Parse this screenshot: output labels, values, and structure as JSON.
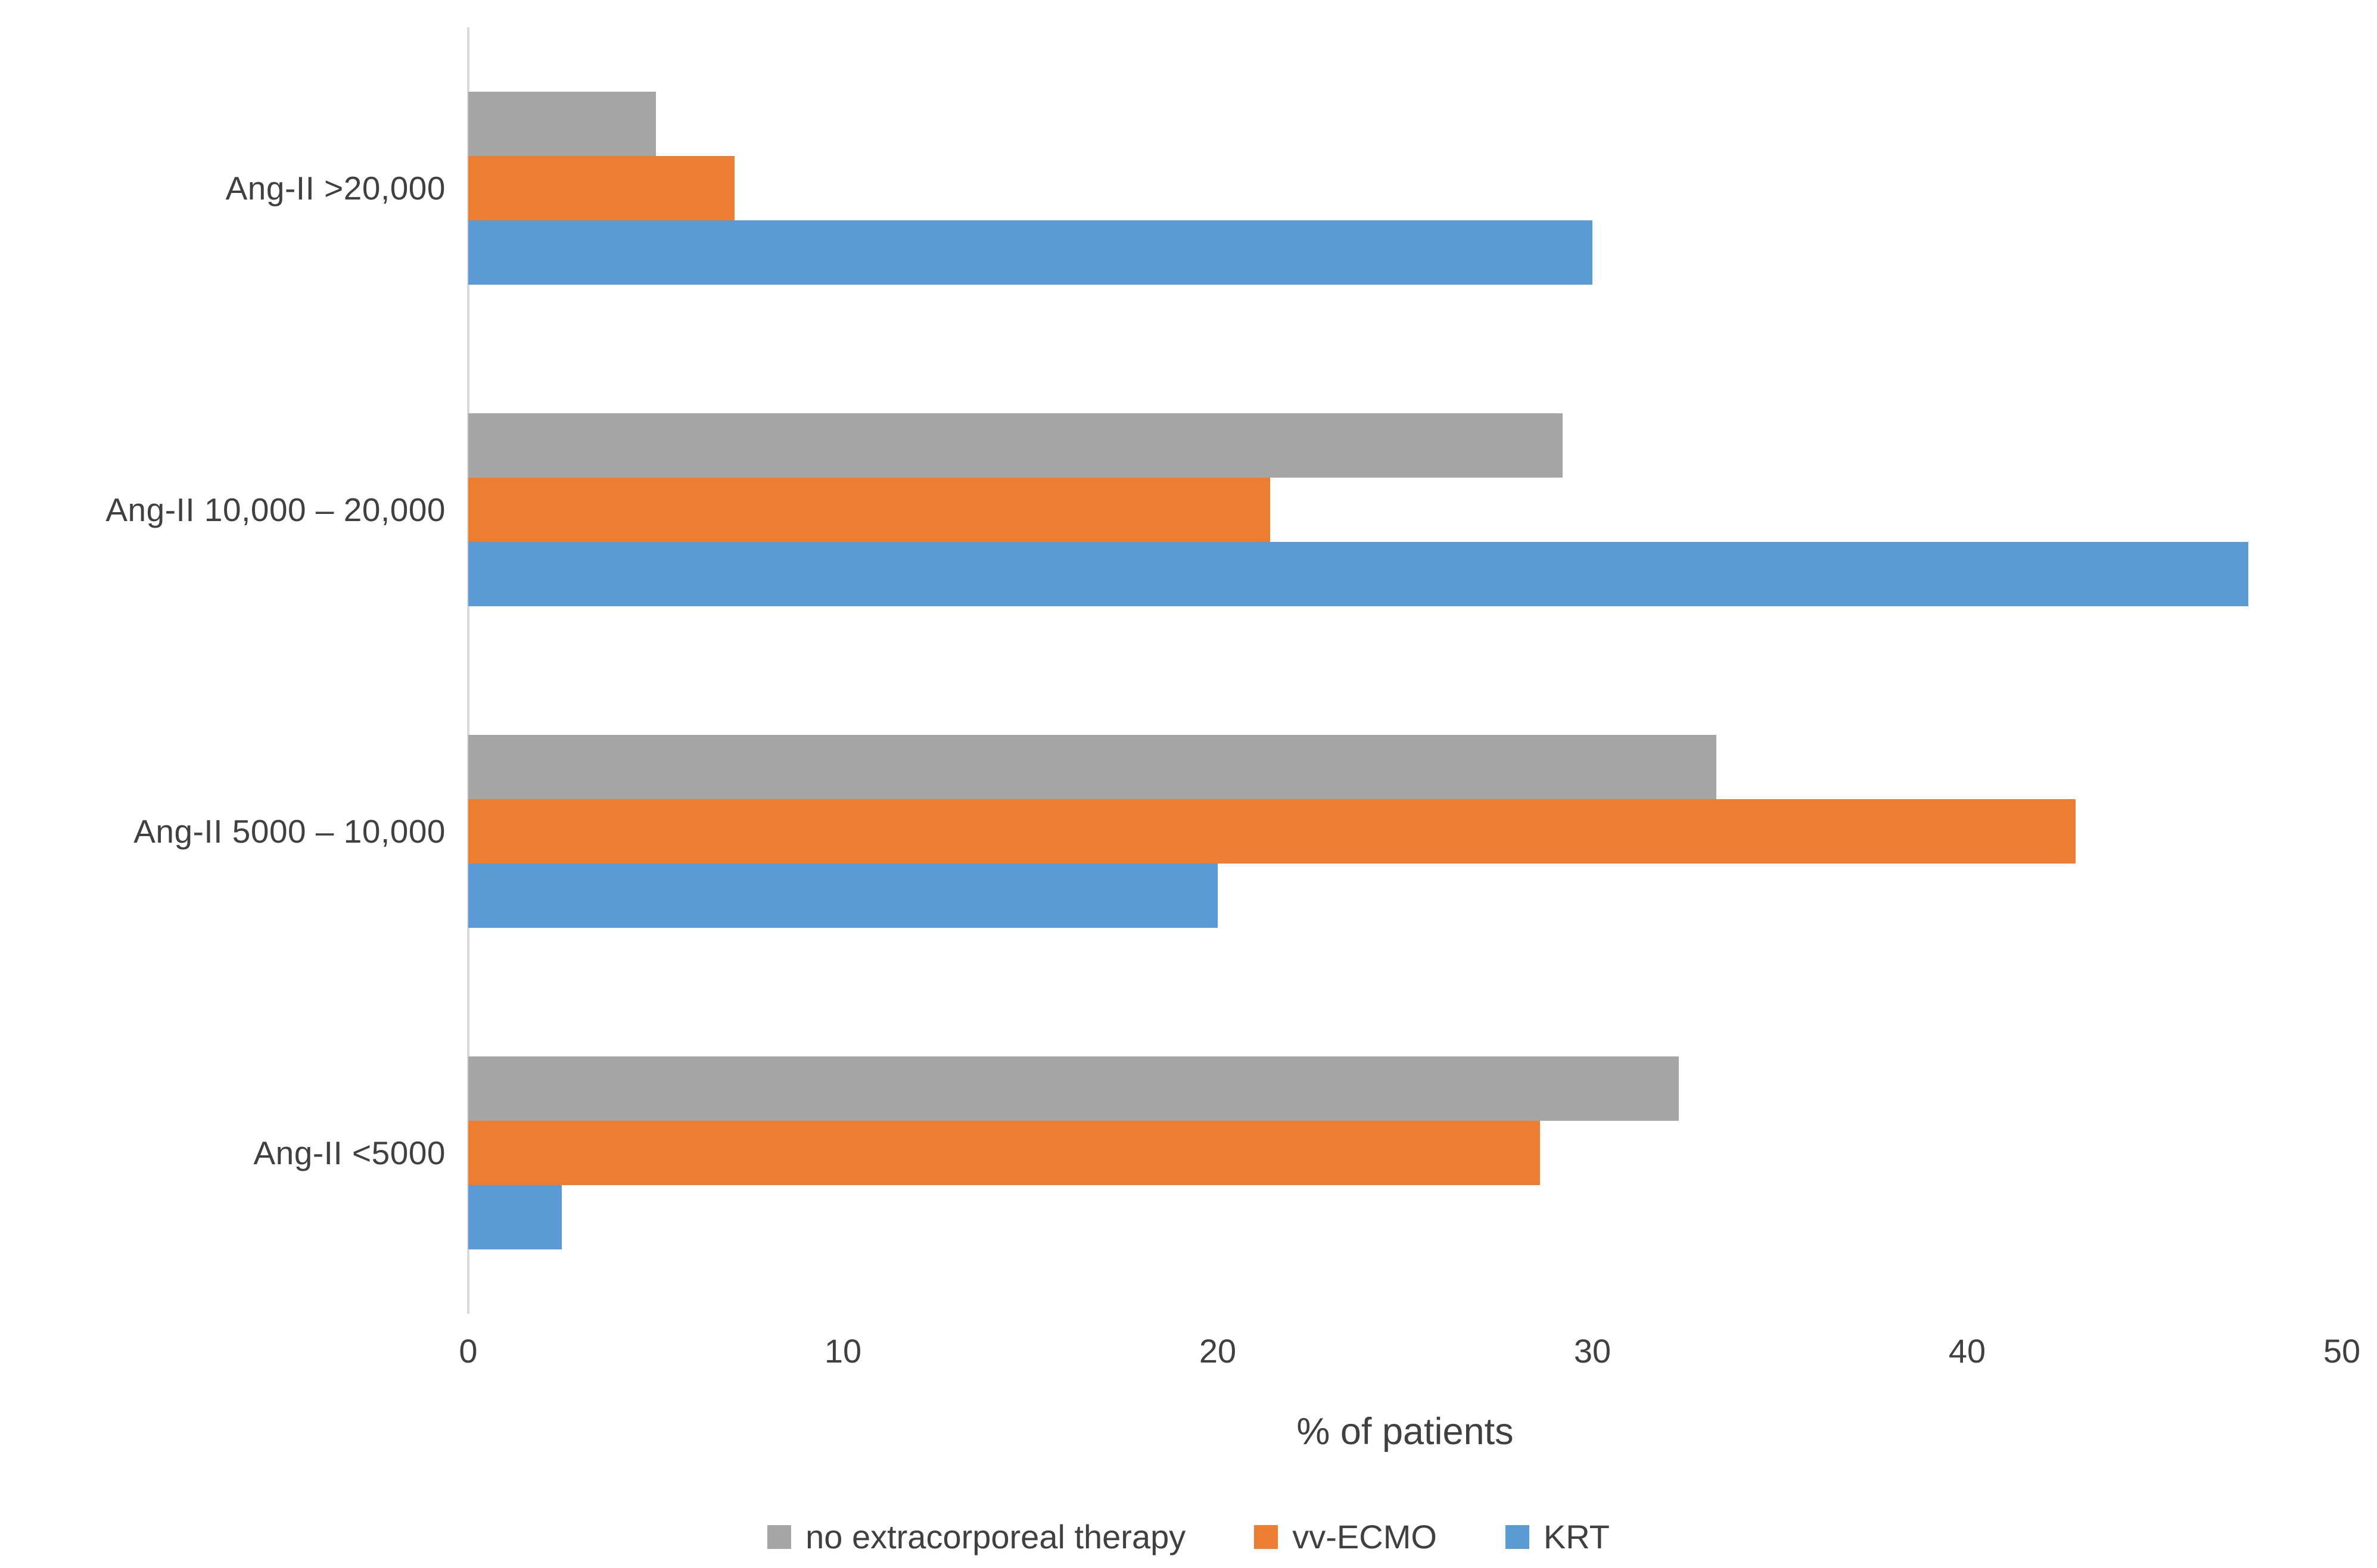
{
  "chart_data": {
    "type": "bar",
    "orientation": "horizontal",
    "title": "",
    "xlabel": "% of patients",
    "ylabel": "",
    "xlim": [
      0,
      50
    ],
    "xticks": [
      0,
      10,
      20,
      30,
      40,
      50
    ],
    "grid": false,
    "legend_position": "bottom",
    "categories": [
      "Ang-II >20,000",
      "Ang-II 10,000 – 20,000",
      "Ang-II 5000 – 10,000",
      "Ang-II <5000"
    ],
    "series": [
      {
        "name": "no extracorporeal therapy",
        "color": "#a5a5a5",
        "values": [
          5,
          29.2,
          33.3,
          32.3
        ]
      },
      {
        "name": "vv-ECMO",
        "color": "#ed7d31",
        "values": [
          7.1,
          21.4,
          42.9,
          28.6
        ]
      },
      {
        "name": "KRT",
        "color": "#5b9bd5",
        "values": [
          30,
          47.5,
          20,
          2.5
        ]
      }
    ]
  },
  "colors": {
    "axis_line": "#d9d9d9",
    "text": "#404040",
    "background": "#ffffff"
  }
}
